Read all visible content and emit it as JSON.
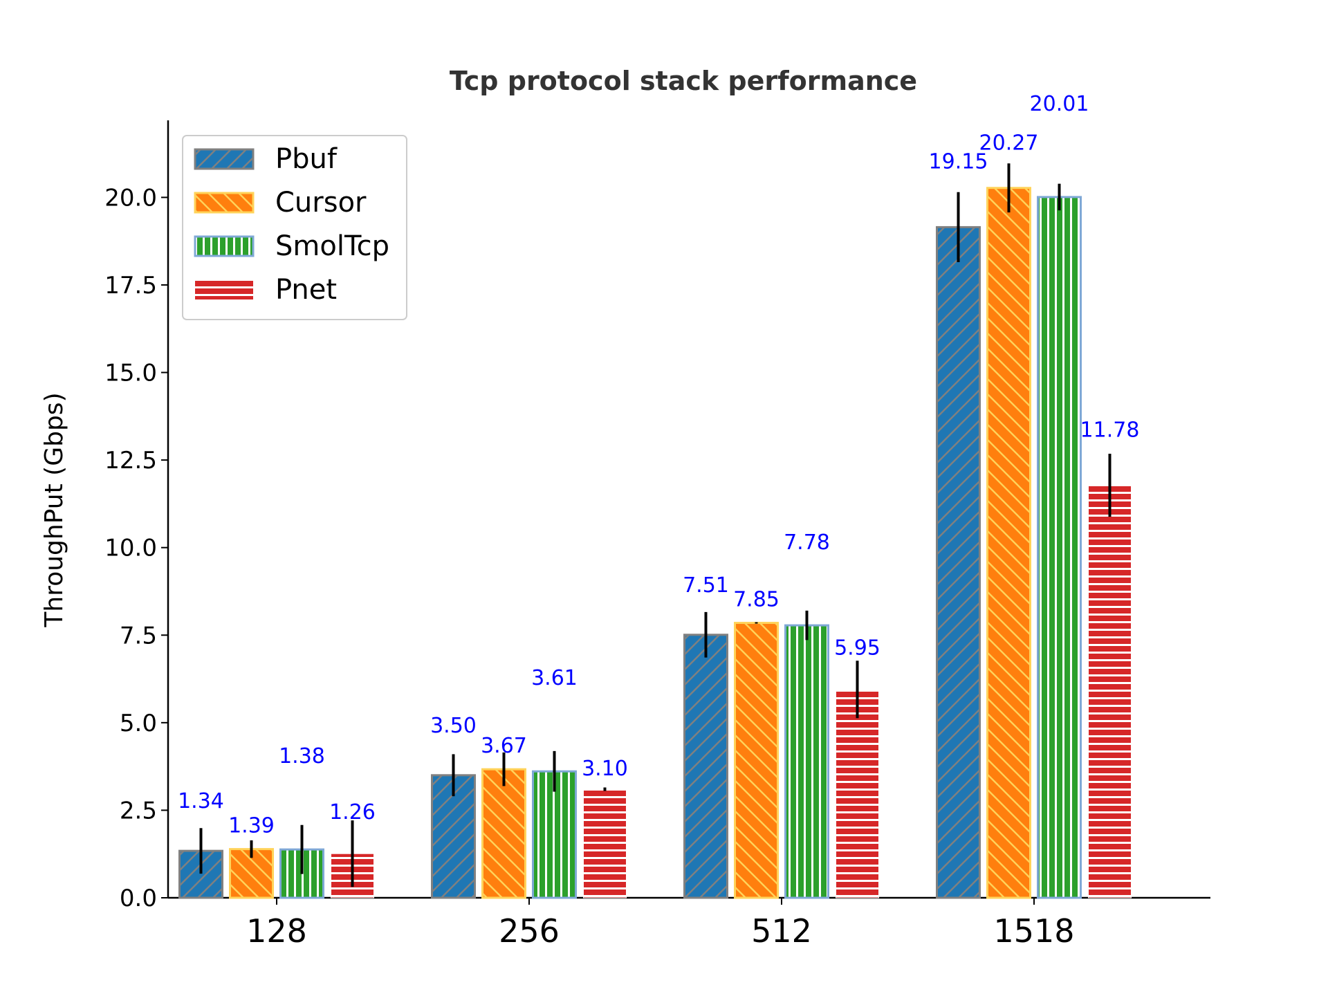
{
  "chart_data": {
    "type": "bar",
    "title": "Tcp protocol stack performance",
    "xlabel": "",
    "ylabel": "ThroughPut (Gbps)",
    "categories": [
      "128",
      "256",
      "512",
      "1518"
    ],
    "ylim": [
      0,
      22.2
    ],
    "yticks": [
      "0.0",
      "2.5",
      "5.0",
      "7.5",
      "10.0",
      "12.5",
      "15.0",
      "17.5",
      "20.0"
    ],
    "legend_position": "top-left",
    "series": [
      {
        "name": "Pbuf",
        "color": "#1f77b4",
        "edge": "#808080",
        "hatch": "diagonal-forward",
        "values": [
          1.34,
          3.5,
          7.51,
          19.15
        ],
        "labels": [
          "1.34",
          "3.50",
          "7.51",
          "19.15"
        ],
        "errors": [
          0.65,
          0.6,
          0.65,
          1.0
        ]
      },
      {
        "name": "Cursor",
        "color": "#ff7f0e",
        "edge": "#ffd35a",
        "hatch": "diagonal-back",
        "values": [
          1.39,
          3.67,
          7.85,
          20.27
        ],
        "labels": [
          "1.39",
          "3.67",
          "7.85",
          "20.27"
        ],
        "errors": [
          0.25,
          0.48,
          0.02,
          0.7
        ]
      },
      {
        "name": "SmolTcp",
        "color": "#2ca02c",
        "edge": "#7fa8d6",
        "hatch": "vertical",
        "values": [
          1.38,
          3.61,
          7.78,
          20.01
        ],
        "labels": [
          "1.38",
          "3.61",
          "7.78",
          "20.01"
        ],
        "errors": [
          0.7,
          0.58,
          0.42,
          0.38
        ]
      },
      {
        "name": "Pnet",
        "color": "#d62728",
        "edge": "#ffffff",
        "hatch": "horizontal",
        "values": [
          1.26,
          3.1,
          5.95,
          11.78
        ],
        "labels": [
          "1.26",
          "3.10",
          "5.95",
          "11.78"
        ],
        "errors": [
          0.95,
          0.05,
          0.82,
          0.9
        ]
      }
    ]
  }
}
